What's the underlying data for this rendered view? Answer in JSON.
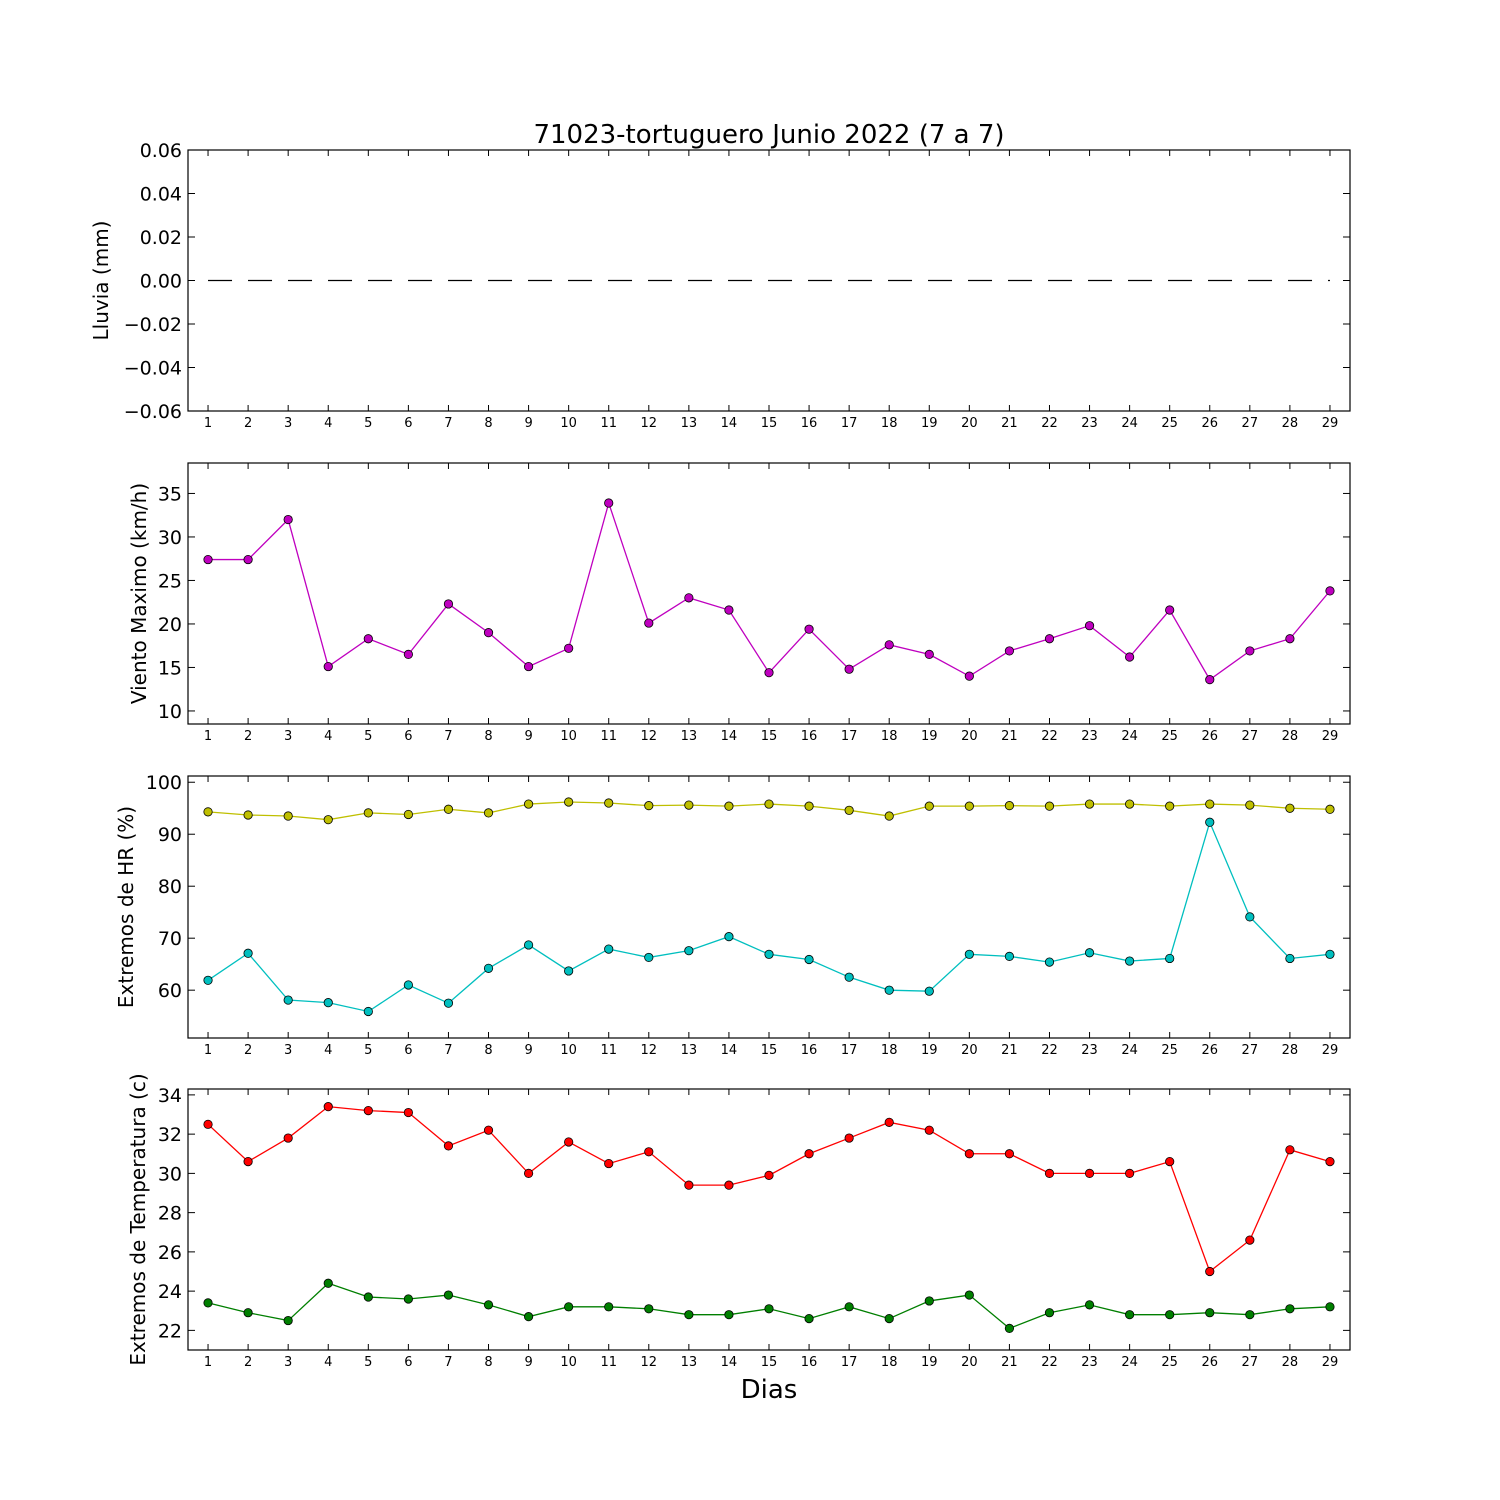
{
  "title": "71023-tortuguero Junio 2022  (7 a 7)",
  "xlabel": "Dias",
  "chart_data": [
    {
      "type": "line",
      "ylabel": "Lluvia (mm)",
      "x": [
        1,
        2,
        3,
        4,
        5,
        6,
        7,
        8,
        9,
        10,
        11,
        12,
        13,
        14,
        15,
        16,
        17,
        18,
        19,
        20,
        21,
        22,
        23,
        24,
        25,
        26,
        27,
        28,
        29
      ],
      "xlim": [
        0.5,
        29.5
      ],
      "ylim": [
        -0.06,
        0.06
      ],
      "yticks": [
        -0.06,
        -0.04,
        -0.02,
        0.0,
        0.02,
        0.04,
        0.06
      ],
      "ytick_labels": [
        "−0.06",
        "−0.04",
        "−0.02",
        "0.00",
        "0.02",
        "0.04",
        "0.06"
      ],
      "series": [
        {
          "color": "#000000",
          "marker": false,
          "dashed": true,
          "values": [
            0,
            0,
            0,
            0,
            0,
            0,
            0,
            0,
            0,
            0,
            0,
            0,
            0,
            0,
            0,
            0,
            0,
            0,
            0,
            0,
            0,
            0,
            0,
            0,
            0,
            0,
            0,
            0,
            0
          ]
        }
      ]
    },
    {
      "type": "line",
      "ylabel": "Viento Maximo (km/h)",
      "x": [
        1,
        2,
        3,
        4,
        5,
        6,
        7,
        8,
        9,
        10,
        11,
        12,
        13,
        14,
        15,
        16,
        17,
        18,
        19,
        20,
        21,
        22,
        23,
        24,
        25,
        26,
        27,
        28,
        29
      ],
      "xlim": [
        0.5,
        29.5
      ],
      "ylim": [
        8.5,
        38.5
      ],
      "yticks": [
        10,
        15,
        20,
        25,
        30,
        35
      ],
      "ytick_labels": [
        "10",
        "15",
        "20",
        "25",
        "30",
        "35"
      ],
      "series": [
        {
          "color": "#bf00bf",
          "marker": true,
          "values": [
            27.4,
            27.4,
            32.0,
            15.1,
            18.3,
            16.5,
            22.3,
            19.0,
            15.1,
            17.2,
            33.9,
            20.1,
            23.0,
            21.6,
            14.4,
            19.4,
            14.8,
            17.6,
            16.5,
            14.0,
            16.9,
            18.3,
            19.8,
            16.2,
            21.6,
            13.6,
            16.9,
            18.3,
            23.8
          ]
        }
      ]
    },
    {
      "type": "line",
      "ylabel": "Extremos de HR (%)",
      "x": [
        1,
        2,
        3,
        4,
        5,
        6,
        7,
        8,
        9,
        10,
        11,
        12,
        13,
        14,
        15,
        16,
        17,
        18,
        19,
        20,
        21,
        22,
        23,
        24,
        25,
        26,
        27,
        28,
        29
      ],
      "xlim": [
        0.5,
        29.5
      ],
      "ylim": [
        50.8,
        101.2
      ],
      "yticks": [
        60,
        70,
        80,
        90,
        100
      ],
      "ytick_labels": [
        "60",
        "70",
        "80",
        "90",
        "100"
      ],
      "series": [
        {
          "color": "#bfbf00",
          "marker": true,
          "values": [
            94.3,
            93.7,
            93.5,
            92.8,
            94.1,
            93.8,
            94.8,
            94.1,
            95.8,
            96.2,
            96.0,
            95.5,
            95.6,
            95.4,
            95.8,
            95.4,
            94.6,
            93.5,
            95.4,
            95.4,
            95.5,
            95.4,
            95.8,
            95.8,
            95.4,
            95.8,
            95.6,
            95.0,
            94.8
          ]
        },
        {
          "color": "#00bfbf",
          "marker": true,
          "values": [
            61.9,
            67.1,
            58.1,
            57.6,
            55.9,
            61.0,
            57.5,
            64.2,
            68.7,
            63.7,
            67.9,
            66.3,
            67.6,
            70.3,
            66.9,
            65.9,
            62.5,
            60.0,
            59.8,
            66.9,
            66.5,
            65.4,
            67.2,
            65.6,
            66.1,
            92.3,
            74.1,
            66.1,
            66.9
          ]
        }
      ]
    },
    {
      "type": "line",
      "ylabel": "Extremos de Temperatura (c)",
      "x": [
        1,
        2,
        3,
        4,
        5,
        6,
        7,
        8,
        9,
        10,
        11,
        12,
        13,
        14,
        15,
        16,
        17,
        18,
        19,
        20,
        21,
        22,
        23,
        24,
        25,
        26,
        27,
        28,
        29
      ],
      "xlim": [
        0.5,
        29.5
      ],
      "ylim": [
        21.0,
        34.3
      ],
      "yticks": [
        22,
        24,
        26,
        28,
        30,
        32,
        34
      ],
      "ytick_labels": [
        "22",
        "24",
        "26",
        "28",
        "30",
        "32",
        "34"
      ],
      "series": [
        {
          "color": "#ff0000",
          "marker": true,
          "values": [
            32.5,
            30.6,
            31.8,
            33.4,
            33.2,
            33.1,
            31.4,
            32.2,
            30.0,
            31.6,
            30.5,
            31.1,
            29.4,
            29.4,
            29.9,
            31.0,
            31.8,
            32.6,
            32.2,
            31.0,
            31.0,
            30.0,
            30.0,
            30.0,
            30.6,
            25.0,
            26.6,
            31.2,
            30.6
          ]
        },
        {
          "color": "#007f00",
          "marker": true,
          "values": [
            23.4,
            22.9,
            22.5,
            24.4,
            23.7,
            23.6,
            23.8,
            23.3,
            22.7,
            23.2,
            23.2,
            23.1,
            22.8,
            22.8,
            23.1,
            22.6,
            23.2,
            22.6,
            23.5,
            23.8,
            22.1,
            22.9,
            23.3,
            22.8,
            22.8,
            22.9,
            22.8,
            23.1,
            23.2
          ]
        }
      ]
    }
  ]
}
